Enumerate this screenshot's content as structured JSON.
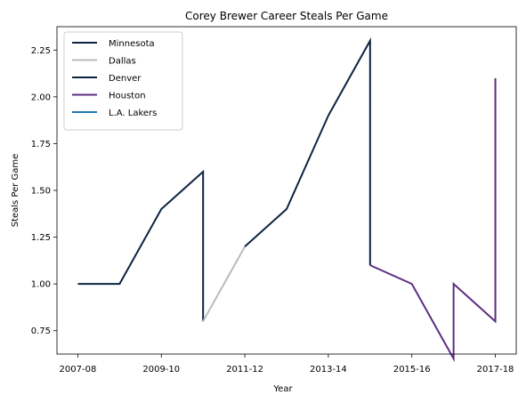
{
  "chart_data": {
    "type": "line",
    "title": "Corey Brewer Career Steals Per Game",
    "xlabel": "Year",
    "ylabel": "Steals Per Game",
    "x_tick_labels": [
      "2007-08",
      "2009-10",
      "2011-12",
      "2013-14",
      "2015-16",
      "2017-18"
    ],
    "x_tick_positions": [
      0,
      2,
      4,
      6,
      8,
      10
    ],
    "xlim": [
      -0.5,
      10.5
    ],
    "ylim": [
      0.625,
      2.375
    ],
    "y_ticks": [
      0.75,
      1.0,
      1.25,
      1.5,
      1.75,
      2.0,
      2.25
    ],
    "y_tick_labels": [
      "0.75",
      "1.00",
      "1.25",
      "1.50",
      "1.75",
      "2.00",
      "2.25"
    ],
    "grid": false,
    "legend_position": "top-left",
    "series": [
      {
        "name": "Minnesota",
        "color": "#0c2340",
        "points": [
          [
            0,
            1.0
          ],
          [
            1,
            1.0
          ],
          [
            2,
            1.4
          ],
          [
            3,
            1.6
          ],
          [
            3,
            0.8
          ]
        ]
      },
      {
        "name": "Dallas",
        "color": "#bbbbbb",
        "points": [
          [
            3,
            0.8
          ],
          [
            4,
            1.2
          ]
        ]
      },
      {
        "name": "Denver",
        "color": "#0c2340",
        "points": [
          [
            4,
            1.2
          ],
          [
            5,
            1.4
          ],
          [
            6,
            1.9
          ],
          [
            7,
            2.3
          ],
          [
            7,
            1.1
          ]
        ]
      },
      {
        "name": "Houston",
        "color": "#5c2d83",
        "points": [
          [
            7,
            1.1
          ],
          [
            8,
            1.0
          ],
          [
            9,
            0.6
          ],
          [
            9,
            1.0
          ],
          [
            10,
            0.8
          ],
          [
            10,
            2.1
          ]
        ]
      },
      {
        "name": "L.A. Lakers",
        "color": "#1f77b4",
        "points": []
      }
    ]
  }
}
